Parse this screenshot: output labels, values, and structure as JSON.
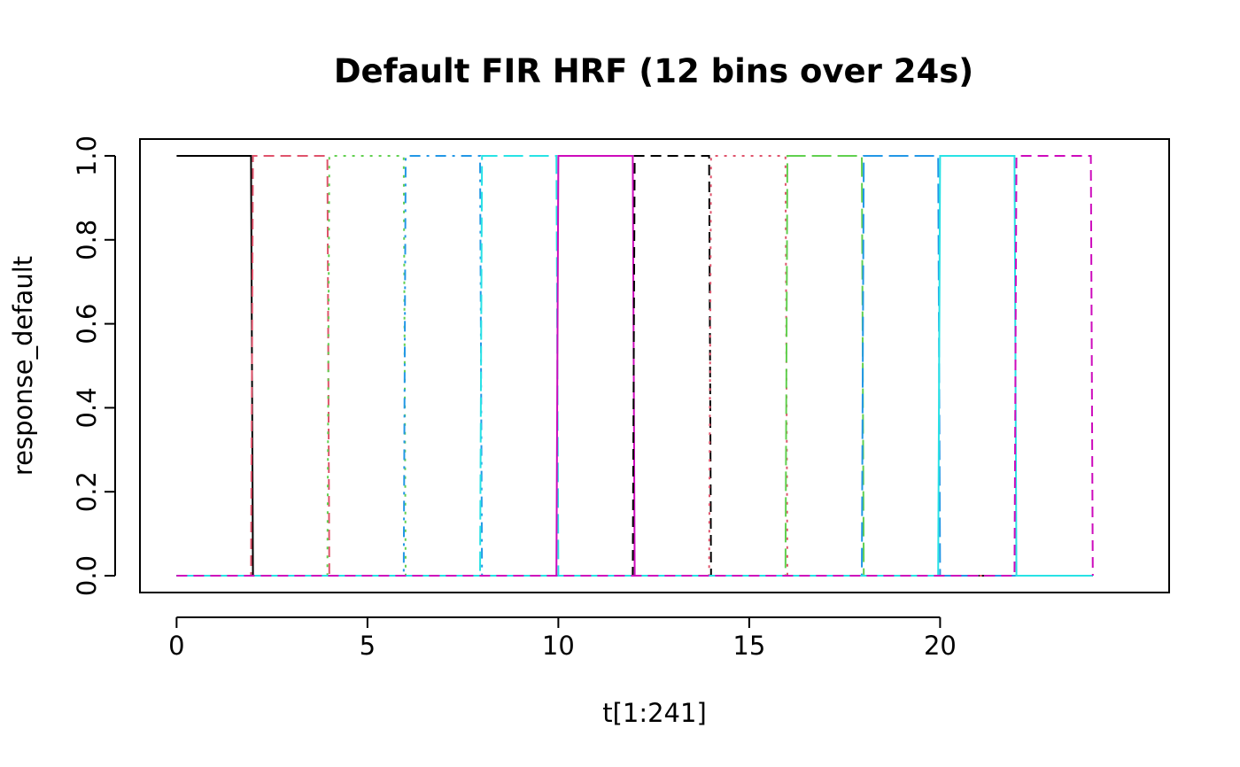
{
  "chart_data": {
    "type": "line",
    "title": "Default FIR HRF (12 bins over 24s)",
    "xlabel": "t[1:241]",
    "ylabel": "response_default",
    "xlim": [
      -0.96,
      26.0
    ],
    "ylim": [
      -0.04,
      1.04
    ],
    "xticks": [
      0,
      5,
      10,
      15,
      20
    ],
    "yticks": [
      0.0,
      0.2,
      0.4,
      0.6,
      0.8,
      1.0
    ],
    "xtick_labels": [
      "0",
      "5",
      "10",
      "15",
      "20"
    ],
    "ytick_labels": [
      "0.0",
      "0.2",
      "0.4",
      "0.6",
      "0.8",
      "1.0"
    ],
    "grid": false,
    "legend": "none",
    "x_range": [
      0,
      24
    ],
    "series": [
      {
        "bin": 1,
        "on": [
          0,
          2
        ],
        "color": "#000000",
        "dash": "solid"
      },
      {
        "bin": 2,
        "on": [
          2,
          4
        ],
        "color": "#DF536B",
        "dash": "dashed"
      },
      {
        "bin": 3,
        "on": [
          4,
          6
        ],
        "color": "#61D04F",
        "dash": "dotted"
      },
      {
        "bin": 4,
        "on": [
          6,
          8
        ],
        "color": "#2297E6",
        "dash": "dotdash"
      },
      {
        "bin": 5,
        "on": [
          8,
          10
        ],
        "color": "#28E2E5",
        "dash": "longdash"
      },
      {
        "bin": 6,
        "on": [
          10,
          12
        ],
        "color": "#CD0BBC",
        "dash": "solid"
      },
      {
        "bin": 7,
        "on": [
          12,
          14
        ],
        "color": "#000000",
        "dash": "dashed"
      },
      {
        "bin": 8,
        "on": [
          14,
          16
        ],
        "color": "#DF536B",
        "dash": "dotted"
      },
      {
        "bin": 9,
        "on": [
          16,
          18
        ],
        "color": "#61D04F",
        "dash": "longdash"
      },
      {
        "bin": 10,
        "on": [
          18,
          20
        ],
        "color": "#2297E6",
        "dash": "longdash"
      },
      {
        "bin": 11,
        "on": [
          20,
          22
        ],
        "color": "#28E2E5",
        "dash": "solid"
      },
      {
        "bin": 12,
        "on": [
          22,
          24
        ],
        "color": "#CD0BBC",
        "dash": "dashed"
      }
    ]
  }
}
